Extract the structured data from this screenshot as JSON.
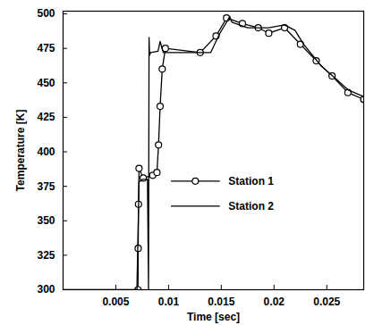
{
  "chart_data": {
    "type": "line",
    "x_label": "Time [sec]",
    "y_label": "Temperature [K]",
    "xlim": [
      0,
      0.0285
    ],
    "xticks": [
      0.005,
      0.01,
      0.015,
      0.02,
      0.025
    ],
    "ylim": [
      300,
      502
    ],
    "yticks": [
      300,
      325,
      350,
      375,
      400,
      425,
      450,
      475,
      500
    ],
    "grid": false,
    "legend": "right",
    "series": [
      {
        "name": "Station 1",
        "color": "#000000",
        "marker": "circle",
        "line_style": "solid",
        "x": [
          0.0071,
          0.00712,
          0.00715,
          0.0072,
          0.0076,
          0.0085,
          0.0089,
          0.00905,
          0.0092,
          0.0094,
          0.0097,
          0.013,
          0.0145,
          0.0155,
          0.017,
          0.0185,
          0.0195,
          0.021,
          0.0225,
          0.024,
          0.0255,
          0.027,
          0.0285
        ],
        "values": [
          300,
          330,
          362,
          388,
          381,
          383,
          385,
          405,
          433,
          460,
          475,
          472,
          484,
          497,
          493,
          490,
          486,
          490,
          478,
          466,
          455,
          443,
          438
        ]
      },
      {
        "name": "Station 2",
        "color": "#000000",
        "marker": "none",
        "line_style": "solid",
        "x": [
          0.0,
          0.007,
          0.0072,
          0.0075,
          0.008,
          0.0081,
          0.00815,
          0.0082,
          0.0083,
          0.009,
          0.0092,
          0.0095,
          0.01,
          0.014,
          0.0148,
          0.0158,
          0.016,
          0.0175,
          0.0195,
          0.021,
          0.022,
          0.0228,
          0.0245,
          0.026,
          0.027,
          0.0285
        ],
        "values": [
          300,
          300,
          378,
          380,
          380,
          300,
          483,
          470,
          472,
          473,
          480,
          472,
          472,
          472,
          485,
          498,
          494,
          490,
          490,
          492,
          488,
          478,
          462,
          452,
          445,
          440
        ]
      }
    ]
  }
}
